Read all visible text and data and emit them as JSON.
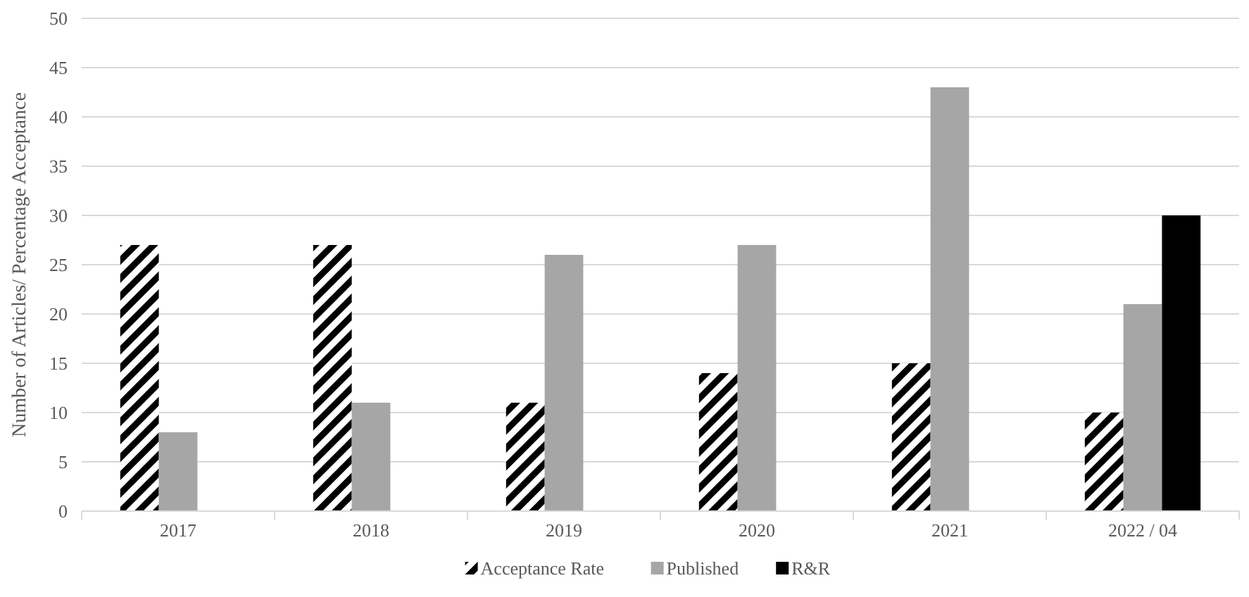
{
  "chart_data": {
    "type": "bar",
    "ylabel": "Number of Articles/ Percentage Acceptance",
    "categories": [
      "2017",
      "2018",
      "2019",
      "2020",
      "2021",
      "2022 / 04"
    ],
    "series": [
      {
        "name": "Acceptance Rate",
        "color": "#000000",
        "values": [
          27,
          27,
          11,
          14,
          15,
          10
        ]
      },
      {
        "name": "Published",
        "color": "#a6a6a6",
        "values": [
          8,
          11,
          26,
          27,
          43,
          21
        ]
      },
      {
        "name": "R&R",
        "color": "#000000",
        "values": [
          null,
          null,
          null,
          null,
          null,
          30
        ]
      }
    ],
    "ylim": [
      0,
      50
    ],
    "yticks": [
      0,
      5,
      10,
      15,
      20,
      25,
      30,
      35,
      40,
      45,
      50
    ],
    "grid": "y",
    "legend": "bottom"
  }
}
